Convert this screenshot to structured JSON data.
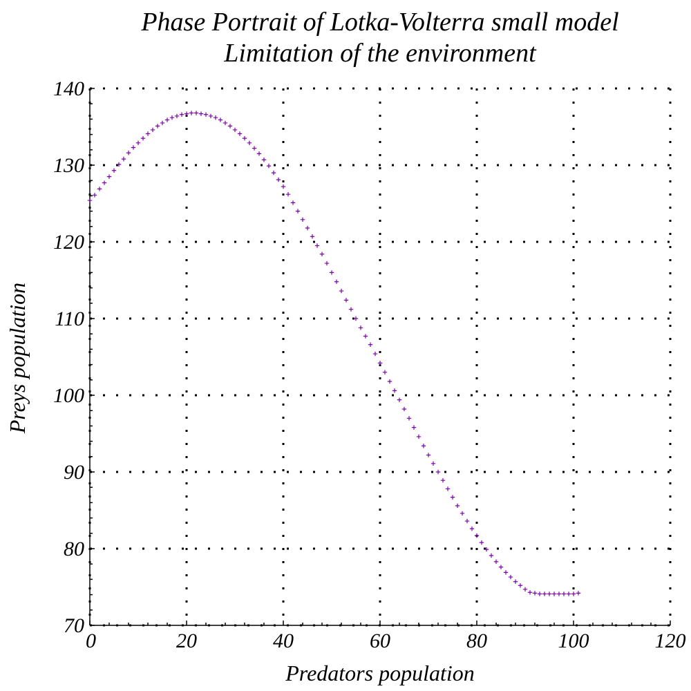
{
  "chart_data": {
    "type": "scatter",
    "title": "Phase Portrait of Lotka-Volterra small model",
    "subtitle": "Limitation of the environment",
    "xlabel": "Predators population",
    "ylabel": "Preys population",
    "xlim": [
      0,
      120
    ],
    "ylim": [
      70,
      140
    ],
    "xticks": [
      "0",
      "20",
      "40",
      "60",
      "80",
      "100",
      "120"
    ],
    "yticks": [
      "70",
      "80",
      "90",
      "100",
      "110",
      "120",
      "130",
      "140"
    ],
    "xtick_values": [
      0,
      20,
      40,
      60,
      80,
      100,
      120
    ],
    "ytick_values": [
      70,
      80,
      90,
      100,
      110,
      120,
      130,
      140
    ],
    "minor_step_x": 4,
    "minor_step_y": 2,
    "grid": true,
    "marker": "plus",
    "series": [
      {
        "color": "#7a00a8",
        "x": [
          0,
          1,
          2,
          3,
          4,
          5,
          6,
          7,
          8,
          9,
          10,
          11,
          12,
          13,
          14,
          15,
          16,
          17,
          18,
          19,
          20,
          21,
          22,
          23,
          24,
          25,
          26,
          27,
          28,
          29,
          30,
          31,
          32,
          33,
          34,
          35,
          36,
          37,
          38,
          39,
          40,
          41,
          42,
          43,
          44,
          45,
          46,
          47,
          48,
          49,
          50,
          51,
          52,
          53,
          54,
          55,
          56,
          57,
          58,
          59,
          60,
          61,
          62,
          63,
          64,
          65,
          66,
          67,
          68,
          69,
          70,
          71,
          72,
          73,
          74,
          75,
          76,
          77,
          78,
          79,
          80,
          81,
          82,
          83,
          84,
          85,
          86,
          87,
          88,
          89,
          90,
          91,
          92,
          93,
          94,
          95,
          96,
          97,
          98,
          99,
          100,
          101
        ],
        "y": [
          125.4,
          126.1,
          126.9,
          127.7,
          128.5,
          129.3,
          130.1,
          130.8,
          131.6,
          132.3,
          132.9,
          133.5,
          134.1,
          134.6,
          135.1,
          135.5,
          135.9,
          136.2,
          136.4,
          136.6,
          136.7,
          136.8,
          136.8,
          136.7,
          136.6,
          136.4,
          136.2,
          135.9,
          135.5,
          135.1,
          134.6,
          134.1,
          133.5,
          132.9,
          132.2,
          131.5,
          130.7,
          129.9,
          129.0,
          128.1,
          127.2,
          126.2,
          125.1,
          124.0,
          122.9,
          121.8,
          120.7,
          119.5,
          118.4,
          117.2,
          116.0,
          114.8,
          113.6,
          112.4,
          111.2,
          110.0,
          108.8,
          107.7,
          106.6,
          105.4,
          104.2,
          103.0,
          101.8,
          100.6,
          99.4,
          98.2,
          97.0,
          95.8,
          94.6,
          93.4,
          92.2,
          91.1,
          90.0,
          88.9,
          87.8,
          86.7,
          85.6,
          84.6,
          83.6,
          82.6,
          81.7,
          80.8,
          79.9,
          79.1,
          78.3,
          77.6,
          76.9,
          76.3,
          75.7,
          75.2,
          74.7,
          74.3,
          74.2,
          74.1,
          74.1,
          74.1,
          74.1,
          74.1,
          74.1,
          74.1,
          74.1,
          74.2
        ]
      }
    ]
  }
}
